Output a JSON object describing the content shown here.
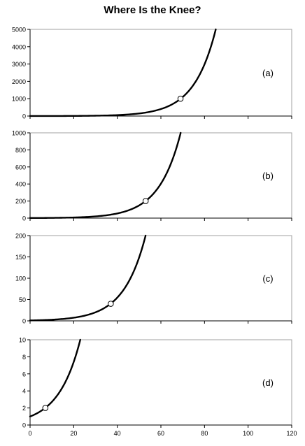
{
  "chart_data": {
    "title": "Where Is the Knee?",
    "type": "line",
    "x_axis": {
      "range": [
        0,
        120
      ],
      "ticks": [
        0,
        20,
        40,
        60,
        80,
        100,
        120
      ],
      "tick_labels": [
        "0",
        "20",
        "40",
        "60",
        "80",
        "100",
        "120"
      ],
      "shown_on": "bottom panel only"
    },
    "grid": false,
    "legend": "none",
    "panels": [
      {
        "label": "(a)",
        "ylim": [
          0,
          5000
        ],
        "yticks": [
          0,
          1000,
          2000,
          3000,
          4000,
          5000
        ],
        "ytick_labels": [
          "0",
          "1000",
          "2000",
          "3000",
          "4000",
          "5000"
        ],
        "curve": {
          "function": "exp",
          "a": 1,
          "b": 0.1,
          "x_start": 0
        },
        "knee": {
          "x": 69,
          "y": 1000
        }
      },
      {
        "label": "(b)",
        "ylim": [
          0,
          1000
        ],
        "yticks": [
          0,
          200,
          400,
          600,
          800,
          1000
        ],
        "ytick_labels": [
          "0",
          "200",
          "400",
          "600",
          "800",
          "1000"
        ],
        "curve": {
          "function": "exp",
          "a": 1,
          "b": 0.1,
          "x_start": 0
        },
        "knee": {
          "x": 53,
          "y": 200
        }
      },
      {
        "label": "(c)",
        "ylim": [
          0,
          200
        ],
        "yticks": [
          0,
          50,
          100,
          150,
          200
        ],
        "ytick_labels": [
          "0",
          "50",
          "100",
          "150",
          "200"
        ],
        "curve": {
          "function": "exp",
          "a": 1,
          "b": 0.1,
          "x_start": 0
        },
        "knee": {
          "x": 37,
          "y": 40
        }
      },
      {
        "label": "(d)",
        "ylim": [
          0,
          10
        ],
        "yticks": [
          0,
          2,
          4,
          6,
          8,
          10
        ],
        "ytick_labels": [
          "0",
          "2",
          "4",
          "6",
          "8",
          "10"
        ],
        "curve": {
          "function": "exp",
          "a": 1,
          "b": 0.1,
          "x_start": 0
        },
        "knee": {
          "x": 7,
          "y": 2
        }
      }
    ],
    "colors": {
      "curve": "#000000",
      "knee_fill": "#ffffff",
      "axis": "#000000",
      "frame": "#a0a0a0"
    }
  }
}
